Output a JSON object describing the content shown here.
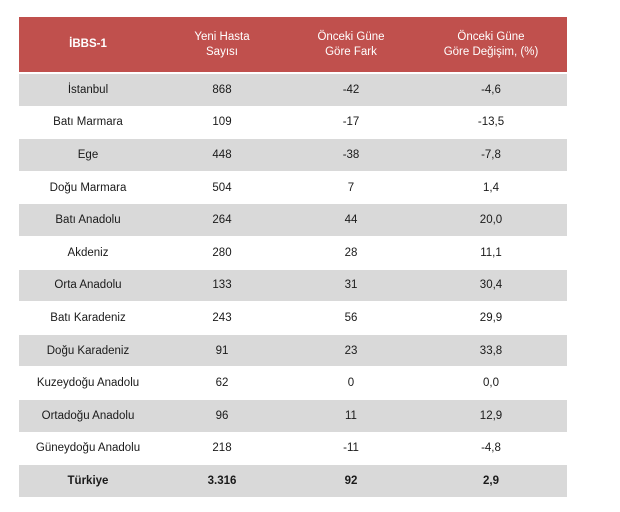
{
  "table": {
    "columns": [
      {
        "lines": [
          "İBBS-1"
        ]
      },
      {
        "lines": [
          "Yeni Hasta",
          "Sayısı"
        ]
      },
      {
        "lines": [
          "Önceki Güne",
          "Göre Fark"
        ]
      },
      {
        "lines": [
          "Önceki Güne",
          "Göre Değişim, (%)"
        ]
      }
    ],
    "rows": [
      {
        "region": "İstanbul",
        "cases": "868",
        "diff": "-42",
        "change": "-4,6"
      },
      {
        "region": "Batı Marmara",
        "cases": "109",
        "diff": "-17",
        "change": "-13,5"
      },
      {
        "region": "Ege",
        "cases": "448",
        "diff": "-38",
        "change": "-7,8"
      },
      {
        "region": "Doğu Marmara",
        "cases": "504",
        "diff": "7",
        "change": "1,4"
      },
      {
        "region": "Batı Anadolu",
        "cases": "264",
        "diff": "44",
        "change": "20,0"
      },
      {
        "region": "Akdeniz",
        "cases": "280",
        "diff": "28",
        "change": "11,1"
      },
      {
        "region": "Orta Anadolu",
        "cases": "133",
        "diff": "31",
        "change": "30,4"
      },
      {
        "region": "Batı Karadeniz",
        "cases": "243",
        "diff": "56",
        "change": "29,9"
      },
      {
        "region": "Doğu Karadeniz",
        "cases": "91",
        "diff": "23",
        "change": "33,8"
      },
      {
        "region": "Kuzeydoğu Anadolu",
        "cases": "62",
        "diff": "0",
        "change": "0,0"
      },
      {
        "region": "Ortadoğu Anadolu",
        "cases": "96",
        "diff": "11",
        "change": "12,9"
      },
      {
        "region": "Güneydoğu Anadolu",
        "cases": "218",
        "diff": "-11",
        "change": "-4,8"
      }
    ],
    "total": {
      "region": "Türkiye",
      "cases": "3.316",
      "diff": "92",
      "change": "2,9"
    }
  },
  "colors": {
    "header_bg": "#c0504d",
    "header_text": "#ffffff",
    "row_shade": "#d9d9d9",
    "row_plain": "#ffffff"
  }
}
